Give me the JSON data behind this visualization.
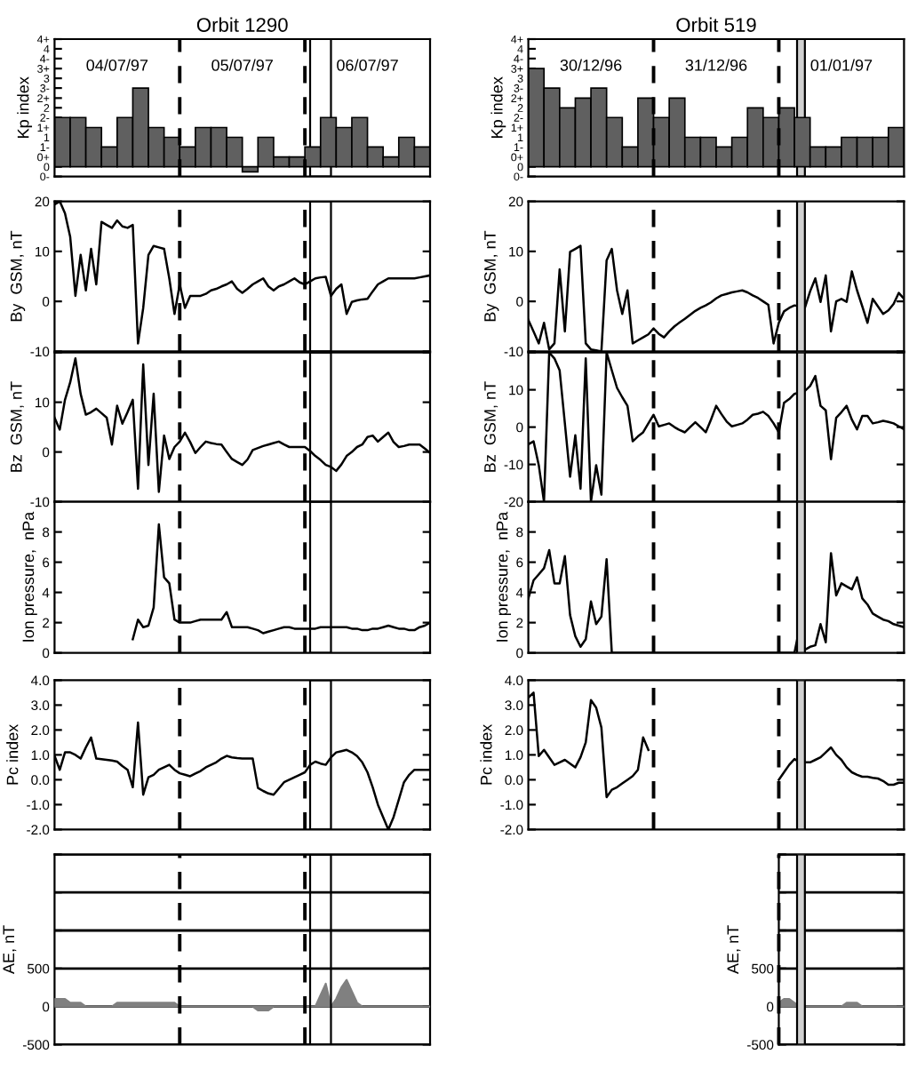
{
  "chart_data": [
    {
      "type": "bar",
      "title": "Orbit 1290",
      "ylabel": "Kp index",
      "ylim": [
        -0.33,
        4.33
      ],
      "tick_labels": "y",
      "categories": [
        null,
        null,
        null,
        null,
        null,
        null,
        null,
        null,
        null,
        null,
        null,
        null,
        null,
        null,
        null,
        null,
        null,
        null,
        null,
        null,
        null,
        null,
        null,
        null
      ],
      "yticks": [
        {
          "value": -0.33,
          "label": "0-"
        },
        {
          "value": 0,
          "label": "0"
        },
        {
          "value": 0.33,
          "label": "0+"
        },
        {
          "value": 0.67,
          "label": "1-"
        },
        {
          "value": 1,
          "label": "1"
        },
        {
          "value": 1.33,
          "label": "1+"
        },
        {
          "value": 1.67,
          "label": "2-"
        },
        {
          "value": 2,
          "label": "2"
        },
        {
          "value": 2.33,
          "label": "2+"
        },
        {
          "value": 2.67,
          "label": "3-"
        },
        {
          "value": 3,
          "label": "3"
        },
        {
          "value": 3.33,
          "label": "3+"
        },
        {
          "value": 3.67,
          "label": "4-"
        },
        {
          "value": 4,
          "label": "4"
        },
        {
          "value": 4.33,
          "label": "4+"
        }
      ],
      "series": [
        {
          "color": "#606060",
          "values": [
            1.67,
            1.67,
            1.33,
            0.67,
            1.67,
            2.67,
            1.33,
            1,
            0.67,
            1.33,
            1.33,
            1,
            -0.17,
            1,
            0.33,
            0.33,
            0.67,
            1.67,
            1.33,
            1.67,
            0.67,
            0.33,
            1,
            0.67
          ]
        }
      ],
      "annotations": [
        "04/07/97",
        "05/07/97",
        "06/07/97"
      ]
    },
    {
      "type": "bar",
      "title": "Orbit 519",
      "ylabel": "Kp index",
      "ylim": [
        -0.33,
        4.33
      ],
      "tick_labels": "y",
      "categories": [
        null,
        null,
        null,
        null,
        null,
        null,
        null,
        null,
        null,
        null,
        null,
        null,
        null,
        null,
        null,
        null,
        null,
        null,
        null,
        null,
        null,
        null,
        null,
        null
      ],
      "yticks": [
        {
          "value": -0.33,
          "label": "0-"
        },
        {
          "value": 0,
          "label": "0"
        },
        {
          "value": 0.33,
          "label": "0+"
        },
        {
          "value": 0.67,
          "label": "1-"
        },
        {
          "value": 1,
          "label": "1"
        },
        {
          "value": 1.33,
          "label": "1+"
        },
        {
          "value": 1.67,
          "label": "2-"
        },
        {
          "value": 2,
          "label": "2"
        },
        {
          "value": 2.33,
          "label": "2+"
        },
        {
          "value": 2.67,
          "label": "3-"
        },
        {
          "value": 3,
          "label": "3"
        },
        {
          "value": 3.33,
          "label": "3+"
        },
        {
          "value": 3.67,
          "label": "4-"
        },
        {
          "value": 4,
          "label": "4"
        },
        {
          "value": 4.33,
          "label": "4+"
        }
      ],
      "series": [
        {
          "color": "#606060",
          "values": [
            3.33,
            2.67,
            2,
            2.33,
            2.67,
            1.67,
            0.67,
            2.33,
            1.67,
            2.33,
            1,
            1,
            0.67,
            1,
            2,
            1.67,
            2,
            1.67,
            0.67,
            0.67,
            1,
            1,
            1,
            1.33
          ]
        }
      ],
      "annotations": [
        "30/12/96",
        "31/12/96",
        "01/01/97"
      ]
    },
    {
      "type": "line",
      "ylabel": "By  GSM, nT",
      "ylim": [
        -10,
        20
      ],
      "tick_labels": "y",
      "yticks": [
        -10,
        0,
        10,
        20
      ],
      "categories": [
        null,
        null,
        null,
        null,
        null,
        null,
        null,
        null,
        null,
        null,
        null,
        null,
        null,
        null,
        null,
        null,
        null,
        null,
        null,
        null,
        null,
        null,
        null,
        null,
        null,
        null,
        null,
        null,
        null,
        null,
        null,
        null,
        null,
        null,
        null,
        null,
        null,
        null,
        null,
        null,
        null,
        null,
        null,
        null,
        null,
        null,
        null,
        null,
        null,
        null,
        null,
        null,
        null,
        null,
        null,
        null,
        null,
        null,
        null,
        null,
        null,
        null,
        null,
        null,
        null,
        null,
        null,
        null,
        null,
        null,
        null,
        null,
        null
      ],
      "series": [
        {
          "color": "#000000",
          "values": [
            19.4,
            20,
            17.6,
            12.9,
            1.1,
            9.3,
            2.2,
            10.5,
            3.4,
            15.9,
            15.3,
            14.7,
            16.2,
            15.0,
            14.7,
            15.3,
            -8.4,
            -1.3,
            9.3,
            11.1,
            10.8,
            10.5,
            4.6,
            -2.5,
            3.4,
            -1.3,
            1.1,
            1.1,
            1.1,
            1.5,
            2.2,
            2.5,
            3.0,
            3.4,
            4.0,
            2.5,
            1.7,
            2.5,
            3.4,
            4.0,
            4.6,
            3.0,
            2.2,
            3.0,
            3.4,
            4.0,
            4.6,
            3.8,
            3.4,
            4.0,
            4.6,
            4.8,
            4.9,
            1.1,
            2.5,
            3.4,
            -2.5,
            -0.1,
            0.2,
            0.4,
            0.5,
            2.0,
            3.4,
            4.0,
            4.6,
            4.6,
            4.6,
            4.6,
            4.6,
            4.6,
            4.8,
            5.0,
            5.2
          ]
        }
      ]
    },
    {
      "type": "line",
      "ylabel": "By  GSM, nT",
      "ylim": [
        -10,
        20
      ],
      "tick_labels": "y",
      "yticks": [
        -10,
        0,
        10,
        20
      ],
      "categories": [
        null,
        null,
        null,
        null,
        null,
        null,
        null,
        null,
        null,
        null,
        null,
        null,
        null,
        null,
        null,
        null,
        null,
        null,
        null,
        null,
        null,
        null,
        null,
        null,
        null,
        null,
        null,
        null,
        null,
        null,
        null,
        null,
        null,
        null,
        null,
        null,
        null,
        null,
        null,
        null,
        null,
        null,
        null,
        null,
        null,
        null,
        null,
        null,
        null,
        null,
        null,
        null,
        null,
        null,
        null,
        null,
        null,
        null,
        null,
        null,
        null,
        null,
        null,
        null,
        null,
        null,
        null,
        null,
        null,
        null,
        null,
        null,
        null
      ],
      "series": [
        {
          "color": "#000000",
          "values": [
            -3.7,
            -6,
            -8.4,
            -4.3,
            -9.6,
            -8.4,
            6.4,
            -6,
            9.9,
            10.5,
            11.1,
            -8.4,
            -9.6,
            -9.8,
            -10,
            8.2,
            10.5,
            2.2,
            -2.5,
            2.2,
            -8.4,
            -7.8,
            -7.2,
            -6.6,
            -5.4,
            -6.5,
            -7.2,
            -6,
            -5,
            -4.2,
            -3.5,
            -2.7,
            -1.9,
            -1.3,
            -0.8,
            -0.2,
            0.6,
            1.2,
            1.5,
            1.8,
            2.0,
            2.2,
            1.8,
            1.2,
            0.7,
            0,
            -0.7,
            -8.4,
            -4.3,
            -2,
            -1.3,
            -0.8,
            -1,
            -1.3,
            2,
            4.6,
            -0.1,
            5.2,
            -6,
            0,
            0.5,
            -0.1,
            6.0,
            2.2,
            -1,
            -4.3,
            0.5,
            -1,
            -2.5,
            -1.8,
            -0.5,
            1.7,
            0.5
          ]
        }
      ]
    },
    {
      "type": "line",
      "ylabel": "Bz  GSM, nT",
      "ylim": [
        -10,
        20
      ],
      "tick_labels": "y",
      "yticks": [
        -10,
        0,
        10,
        {
          "value": 20,
          "label": null
        }
      ],
      "categories": [
        null,
        null,
        null,
        null,
        null,
        null,
        null,
        null,
        null,
        null,
        null,
        null,
        null,
        null,
        null,
        null,
        null,
        null,
        null,
        null,
        null,
        null,
        null,
        null,
        null,
        null,
        null,
        null,
        null,
        null,
        null,
        null,
        null,
        null,
        null,
        null,
        null,
        null,
        null,
        null,
        null,
        null,
        null,
        null,
        null,
        null,
        null,
        null,
        null,
        null,
        null,
        null,
        null,
        null,
        null,
        null,
        null,
        null,
        null,
        null,
        null,
        null,
        null,
        null,
        null,
        null,
        null,
        null,
        null,
        null,
        null,
        null,
        null
      ],
      "series": [
        {
          "color": "#000000",
          "values": [
            6.9,
            4.5,
            10.5,
            14,
            18.8,
            11.7,
            7.5,
            8.0,
            8.7,
            7.8,
            6.9,
            1.5,
            9.3,
            5.7,
            8,
            10.5,
            -7.4,
            17.6,
            -2.6,
            11.7,
            -8,
            3.3,
            -1.4,
            1.0,
            2.1,
            3.9,
            2.0,
            -0.2,
            1.0,
            2.1,
            1.8,
            1.6,
            1.5,
            0,
            -1.4,
            -2.0,
            -2.6,
            -1.5,
            0.4,
            0.8,
            1.2,
            1.5,
            1.8,
            2.1,
            1.5,
            1.0,
            1.0,
            1.0,
            1.0,
            0.2,
            -0.8,
            -1.6,
            -2.6,
            -3,
            -3.8,
            -2.5,
            -0.8,
            0,
            1.0,
            1.5,
            3.0,
            3.3,
            2.1,
            3.0,
            3.9,
            2.0,
            1.0,
            1.2,
            1.5,
            1.5,
            1.5,
            0.7,
            -0.2
          ]
        }
      ]
    },
    {
      "type": "line",
      "ylabel": "Bz  GSM, nT",
      "ylim": [
        -20,
        20
      ],
      "tick_labels": "y",
      "yticks": [
        -20,
        -10,
        0,
        10,
        {
          "value": 20,
          "label": null
        }
      ],
      "categories": [
        null,
        null,
        null,
        null,
        null,
        null,
        null,
        null,
        null,
        null,
        null,
        null,
        null,
        null,
        null,
        null,
        null,
        null,
        null,
        null,
        null,
        null,
        null,
        null,
        null,
        null,
        null,
        null,
        null,
        null,
        null,
        null,
        null,
        null,
        null,
        null,
        null,
        null,
        null,
        null,
        null,
        null,
        null,
        null,
        null,
        null,
        null,
        null,
        null,
        null,
        null,
        null,
        null,
        null,
        null,
        null,
        null,
        null,
        null,
        null,
        null,
        null,
        null,
        null,
        null,
        null,
        null,
        null,
        null,
        null,
        null,
        null,
        null
      ],
      "series": [
        {
          "color": "#000000",
          "values": [
            -4.6,
            -3.8,
            -10.2,
            -20,
            20,
            18.4,
            15.2,
            1.0,
            -13.3,
            -2.2,
            -16.5,
            18.4,
            -20,
            -10.2,
            -18.1,
            20,
            15.2,
            10.5,
            8,
            5.7,
            -3.8,
            -2.5,
            -1.4,
            1,
            3.3,
            0.2,
            0.6,
            1.0,
            0,
            -0.8,
            -1.4,
            0,
            1.3,
            0,
            -1.4,
            2,
            5.7,
            3.5,
            1.5,
            0.2,
            0.6,
            1.0,
            2,
            3.3,
            3.6,
            4.1,
            3.0,
            1,
            -1.4,
            6.5,
            7.5,
            8.9,
            9.3,
            9.7,
            11,
            13.7,
            5.7,
            4.5,
            -8.6,
            2.5,
            4,
            5.7,
            2,
            -0.6,
            3,
            3,
            1.0,
            1.3,
            1.7,
            1.4,
            1.0,
            0.2,
            -0.6
          ]
        }
      ]
    },
    {
      "type": "line",
      "ylabel": "Ion pressure,  nPa",
      "ylim": [
        0,
        10
      ],
      "tick_labels": "y",
      "yticks": [
        0,
        2,
        4,
        6,
        8,
        {
          "value": 10,
          "label": null
        }
      ],
      "categories": [
        null,
        null,
        null,
        null,
        null,
        null,
        null,
        null,
        null,
        null,
        null,
        null,
        null,
        null,
        null,
        null,
        null,
        null,
        null,
        null,
        null,
        null,
        null,
        null,
        null,
        null,
        null,
        null,
        null,
        null,
        null,
        null,
        null,
        null,
        null,
        null,
        null,
        null,
        null,
        null,
        null,
        null,
        null,
        null,
        null,
        null,
        null,
        null,
        null,
        null,
        null,
        null,
        null,
        null,
        null,
        null,
        null,
        null,
        null,
        null,
        null,
        null,
        null,
        null,
        null,
        null,
        null,
        null,
        null,
        null,
        null,
        null,
        null
      ],
      "series": [
        {
          "color": "#000000",
          "values": [
            null,
            null,
            null,
            null,
            null,
            null,
            null,
            null,
            null,
            null,
            null,
            null,
            null,
            null,
            null,
            0.9,
            2.2,
            1.7,
            1.8,
            3.0,
            8.5,
            5.0,
            4.6,
            2.2,
            2.0,
            2.0,
            2.0,
            2.1,
            2.2,
            2.2,
            2.2,
            2.2,
            2.2,
            2.7,
            1.7,
            1.7,
            1.7,
            1.7,
            1.6,
            1.5,
            1.3,
            1.4,
            1.5,
            1.6,
            1.7,
            1.7,
            1.6,
            1.6,
            1.6,
            1.6,
            1.6,
            1.7,
            1.7,
            1.7,
            1.7,
            1.7,
            1.7,
            1.6,
            1.6,
            1.5,
            1.5,
            1.6,
            1.6,
            1.7,
            1.8,
            1.7,
            1.6,
            1.6,
            1.5,
            1.5,
            1.7,
            1.8,
            2.0
          ]
        }
      ]
    },
    {
      "type": "line",
      "ylabel": "Ion pressure,  nPa",
      "ylim": [
        0,
        10
      ],
      "tick_labels": "y",
      "yticks": [
        0,
        2,
        4,
        6,
        8,
        {
          "value": 10,
          "label": null
        }
      ],
      "categories": [
        null,
        null,
        null,
        null,
        null,
        null,
        null,
        null,
        null,
        null,
        null,
        null,
        null,
        null,
        null,
        null,
        null,
        null,
        null,
        null,
        null,
        null,
        null,
        null,
        null,
        null,
        null,
        null,
        null,
        null,
        null,
        null,
        null,
        null,
        null,
        null,
        null,
        null,
        null,
        null,
        null,
        null,
        null,
        null,
        null,
        null,
        null,
        null,
        null,
        null,
        null,
        null,
        null,
        null,
        null,
        null,
        null,
        null,
        null,
        null,
        null,
        null,
        null,
        null,
        null,
        null,
        null,
        null,
        null,
        null,
        null,
        null,
        null
      ],
      "series": [
        {
          "color": "#000000",
          "values": [
            3.6,
            4.8,
            5.2,
            5.6,
            6.8,
            4.6,
            4.6,
            6.4,
            2.5,
            1.1,
            0.4,
            0.9,
            3.4,
            1.9,
            2.4,
            6.2,
            0,
            0,
            0,
            0,
            0,
            0,
            0,
            0,
            0,
            0,
            0,
            0,
            0,
            0,
            0,
            0,
            0,
            0,
            0,
            0,
            0,
            0,
            0,
            0,
            0,
            0,
            0,
            0,
            0,
            0,
            0,
            0,
            0,
            0,
            0,
            0,
            1.7,
            0.2,
            0.4,
            0.5,
            1.9,
            0.7,
            6.6,
            3.8,
            4.6,
            4.4,
            4.2,
            5.0,
            3.6,
            3.2,
            2.6,
            2.4,
            2.2,
            2.1,
            1.9,
            1.8,
            1.7
          ]
        }
      ]
    },
    {
      "type": "line",
      "ylabel": "Pc index",
      "ylim": [
        -2,
        4
      ],
      "tick_labels": "y",
      "yticks": [
        {
          "value": -2,
          "label": "-2.0"
        },
        {
          "value": -1,
          "label": "-1.0"
        },
        {
          "value": 0,
          "label": "0.0"
        },
        {
          "value": 1,
          "label": "1.0"
        },
        {
          "value": 2,
          "label": "2.0"
        },
        {
          "value": 3,
          "label": "3.0"
        },
        {
          "value": 4,
          "label": "4.0"
        }
      ],
      "categories": [
        null,
        null,
        null,
        null,
        null,
        null,
        null,
        null,
        null,
        null,
        null,
        null,
        null,
        null,
        null,
        null,
        null,
        null,
        null,
        null,
        null,
        null,
        null,
        null,
        null,
        null,
        null,
        null,
        null,
        null,
        null,
        null,
        null,
        null,
        null,
        null,
        null,
        null,
        null,
        null,
        null,
        null,
        null,
        null,
        null,
        null,
        null,
        null,
        null,
        null,
        null,
        null,
        null,
        null,
        null,
        null,
        null,
        null,
        null,
        null,
        null,
        null,
        null,
        null,
        null,
        null,
        null,
        null,
        null,
        null,
        null,
        null,
        null
      ],
      "series": [
        {
          "color": "#000000",
          "values": [
            0.96,
            0.4,
            1.1,
            1.1,
            1.0,
            0.85,
            1.3,
            1.7,
            0.85,
            0.83,
            0.8,
            0.77,
            0.73,
            0.55,
            0.4,
            -0.3,
            2.3,
            -0.6,
            0.1,
            0.2,
            0.4,
            0.5,
            0.6,
            0.4,
            0.26,
            0.2,
            0.14,
            0.25,
            0.35,
            0.5,
            0.6,
            0.7,
            0.85,
            0.96,
            0.9,
            0.87,
            0.85,
            0.85,
            0.85,
            -0.33,
            -0.45,
            -0.55,
            -0.6,
            -0.35,
            -0.1,
            0,
            0.1,
            0.2,
            0.3,
            0.6,
            0.73,
            0.65,
            0.6,
            0.9,
            1.1,
            1.15,
            1.2,
            1.1,
            0.95,
            0.7,
            0.3,
            -0.3,
            -1.0,
            -1.5,
            -2.0,
            -1.5,
            -0.8,
            -0.1,
            0.2,
            0.4,
            0.4,
            0.4,
            0.4
          ]
        }
      ]
    },
    {
      "type": "line",
      "ylabel": "Pc index",
      "ylim": [
        -2,
        4
      ],
      "tick_labels": "y",
      "yticks": [
        {
          "value": -2,
          "label": "-2.0"
        },
        {
          "value": -1,
          "label": "-1.0"
        },
        {
          "value": 0,
          "label": "0.0"
        },
        {
          "value": 1,
          "label": "1.0"
        },
        {
          "value": 2,
          "label": "2.0"
        },
        {
          "value": 3,
          "label": "3.0"
        },
        {
          "value": 4,
          "label": "4.0"
        }
      ],
      "categories": [
        null,
        null,
        null,
        null,
        null,
        null,
        null,
        null,
        null,
        null,
        null,
        null,
        null,
        null,
        null,
        null,
        null,
        null,
        null,
        null,
        null,
        null,
        null,
        null,
        null,
        null,
        null,
        null,
        null,
        null,
        null,
        null,
        null,
        null,
        null,
        null,
        null,
        null,
        null,
        null,
        null,
        null,
        null,
        null,
        null,
        null,
        null,
        null,
        null,
        null,
        null,
        null,
        null,
        null,
        null,
        null,
        null,
        null,
        null,
        null,
        null,
        null,
        null,
        null,
        null,
        null,
        null,
        null,
        null,
        null,
        null,
        null,
        null
      ],
      "series": [
        {
          "color": "#000000",
          "values": [
            3.3,
            3.5,
            0.95,
            1.2,
            0.9,
            0.6,
            0.7,
            0.8,
            0.65,
            0.5,
            0.9,
            1.5,
            3.2,
            2.9,
            2.1,
            -0.7,
            -0.4,
            -0.3,
            -0.15,
            0,
            0.15,
            0.4,
            1.7,
            1.2,
            null,
            null,
            null,
            null,
            null,
            null,
            null,
            null,
            null,
            null,
            null,
            null,
            null,
            null,
            null,
            null,
            null,
            null,
            null,
            null,
            null,
            null,
            null,
            null,
            0.0,
            0.3,
            0.6,
            0.83,
            0.7,
            0.7,
            0.7,
            0.8,
            0.9,
            1.1,
            1.3,
            1.0,
            0.8,
            0.5,
            0.3,
            0.2,
            0.12,
            0.12,
            0.08,
            0.05,
            -0.05,
            -0.2,
            -0.2,
            -0.12,
            -0.12
          ]
        }
      ]
    },
    {
      "type": "area",
      "ylabel": "AE, nT",
      "ylim": [
        -500,
        2000
      ],
      "tick_labels": "y",
      "grid": "y",
      "yticks": [
        -500,
        0,
        500,
        {
          "value": 1000,
          "label": null
        },
        {
          "value": 1500,
          "label": null
        },
        {
          "value": 2000,
          "label": null
        }
      ],
      "categories": [
        null,
        null,
        null,
        null,
        null,
        null,
        null,
        null,
        null,
        null,
        null,
        null,
        null,
        null,
        null,
        null,
        null,
        null,
        null,
        null,
        null,
        null,
        null,
        null,
        null,
        null,
        null,
        null,
        null,
        null,
        null,
        null,
        null,
        null,
        null,
        null,
        null,
        null,
        null,
        null,
        null,
        null,
        null,
        null,
        null,
        null,
        null,
        null,
        null,
        null,
        null,
        null,
        null,
        null,
        null,
        null,
        null,
        null,
        null,
        null,
        null,
        null,
        null,
        null,
        null,
        null,
        null,
        null,
        null,
        null,
        null,
        null,
        null
      ],
      "series": [
        {
          "color": "#808080",
          "values": [
            100,
            100,
            100,
            50,
            50,
            50,
            0,
            0,
            0,
            0,
            0,
            0,
            50,
            50,
            50,
            50,
            50,
            50,
            50,
            50,
            50,
            50,
            50,
            50,
            0,
            0,
            0,
            0,
            0,
            0,
            0,
            0,
            0,
            0,
            0,
            0,
            0,
            0,
            0,
            -50,
            -50,
            -50,
            0,
            0,
            0,
            0,
            0,
            0,
            0,
            0,
            0,
            150,
            300,
            0,
            100,
            250,
            350,
            200,
            50,
            0,
            0,
            0,
            0,
            0,
            0,
            0,
            0,
            0,
            0,
            0,
            0,
            0,
            0
          ]
        }
      ]
    },
    {
      "type": "area",
      "ylabel": "AE, nT",
      "ylim": [
        -500,
        2000
      ],
      "tick_labels": "y",
      "grid": "y",
      "yticks": [
        -500,
        0,
        500,
        {
          "value": 1000,
          "label": null
        },
        {
          "value": 1500,
          "label": null
        },
        {
          "value": 2000,
          "label": null
        }
      ],
      "categories": [
        null,
        null,
        null,
        null,
        null,
        null,
        null,
        null,
        null,
        null,
        null,
        null,
        null,
        null,
        null,
        null,
        null,
        null,
        null,
        null,
        null,
        null,
        null,
        null,
        null
      ],
      "series": [
        {
          "color": "#808080",
          "values": [
            50,
            100,
            100,
            50,
            0,
            0,
            0,
            0,
            0,
            0,
            0,
            0,
            0,
            50,
            50,
            50,
            0,
            0,
            0,
            0,
            0,
            0,
            0,
            0,
            0
          ]
        }
      ]
    }
  ]
}
